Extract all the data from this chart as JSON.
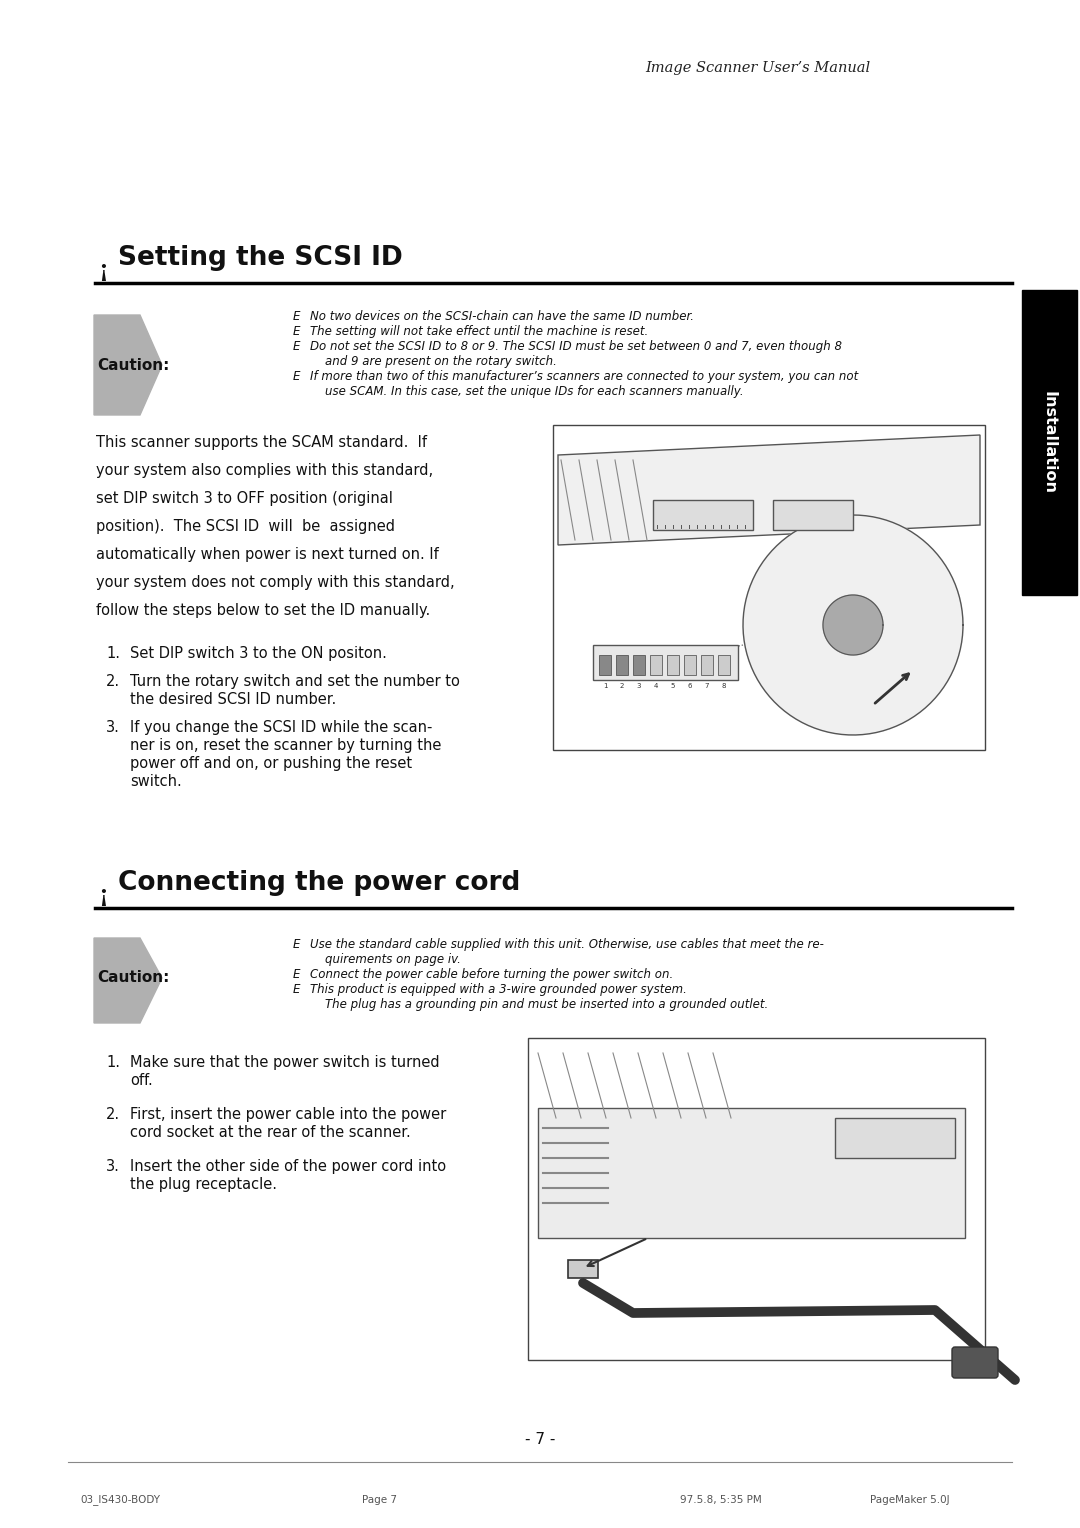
{
  "bg_color": "#ffffff",
  "header_italic": "Image Scanner User’s Manual",
  "section1_title": "Setting the SCSI ID",
  "section1_bullet_label": "Caution:",
  "section2_title": "Connecting the power cord",
  "section2_bullet_label": "Caution:",
  "sidebar_text": "Installation",
  "footer_page": "- 7 -",
  "footer_left": "03_IS430-BODY",
  "footer_center": "Page 7",
  "footer_right1": "97.5.8, 5:35 PM",
  "footer_right2": "PageMaker 5.0J",
  "sec1_bullets": [
    "No two devices on the SCSI-chain can have the same ID number.",
    "The setting will not take effect until the machine is reset.",
    "Do not set the SCSI ID to 8 or 9. The SCSI ID must be set between 0 and 7, even though 8\nand 9 are present on the rotary switch.",
    "If more than two of this manufacturer’s scanners are connected to your system, you can not\nuse SCAM. In this case, set the unique IDs for each scanners manually."
  ],
  "sec1_body": [
    "This scanner supports the SCAM standard.  If",
    "your system also complies with this standard,",
    "set DIP switch 3 to OFF position (original",
    "position).  The SCSI ID  will  be  assigned",
    "automatically when power is next turned on. If",
    "your system does not comply with this standard,",
    "follow the steps below to set the ID manually."
  ],
  "sec1_steps": [
    [
      "1.",
      "Set DIP switch 3 to the ON positon."
    ],
    [
      "2.",
      "Turn the rotary switch and set the number to\nthe desired SCSI ID number."
    ],
    [
      "3.",
      "If you change the SCSI ID while the scan-\nner is on, reset the scanner by turning the\npower off and on, or pushing the reset\nswitch."
    ]
  ],
  "sec2_bullets": [
    "Use the standard cable supplied with this unit. Otherwise, use cables that meet the re-\nquirements on page iv.",
    "Connect the power cable before turning the power switch on.",
    "This product is equipped with a 3-wire grounded power system.\nThe plug has a grounding pin and must be inserted into a grounded outlet."
  ],
  "sec2_steps": [
    [
      "1.",
      "Make sure that the power switch is turned\noff."
    ],
    [
      "2.",
      "First, insert the power cable into the power\ncord socket at the rear of the scanner."
    ],
    [
      "3.",
      "Insert the other side of the power cord into\nthe plug receptacle."
    ]
  ]
}
